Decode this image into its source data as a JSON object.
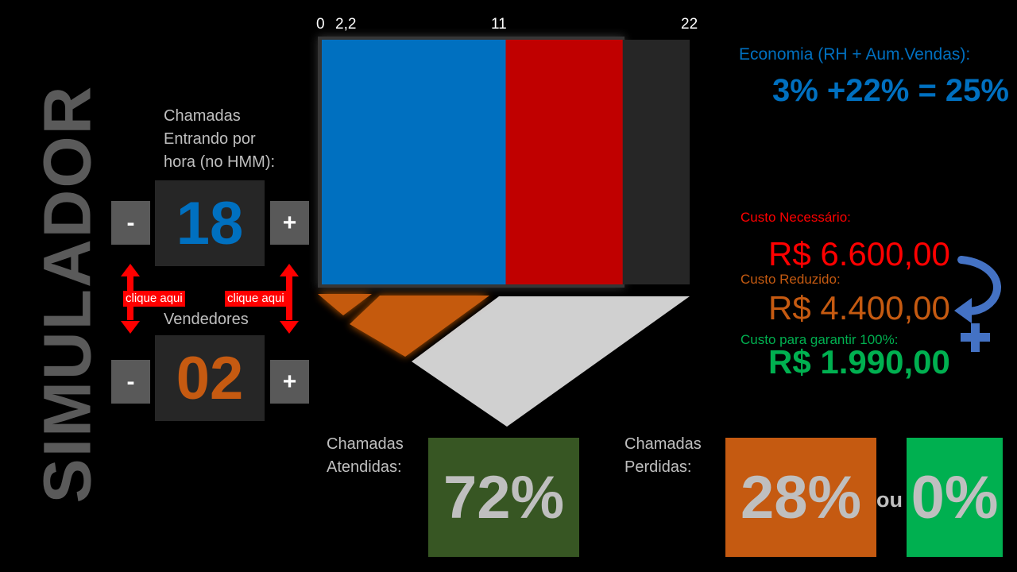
{
  "title": "SIMULADOR",
  "calls": {
    "label_line1": "Chamadas",
    "label_line2": "Entrando por",
    "label_line3": "hora (no HMM):",
    "value": "18",
    "minus": "-",
    "plus": "+"
  },
  "sellers": {
    "label": "Vendedores",
    "value": "02",
    "minus": "-",
    "plus": "+"
  },
  "hints": {
    "left": "clique aqui",
    "right": "clique aqui"
  },
  "axis_ticks": [
    "0",
    "2,2",
    "11",
    "22"
  ],
  "chart_data": {
    "type": "bar",
    "orientation": "horizontal-stacked",
    "x_ticks": [
      0,
      2.2,
      11,
      22
    ],
    "xlim": [
      0,
      22
    ],
    "segments": [
      {
        "from": 0,
        "to": 11,
        "color": "#0070c0"
      },
      {
        "from": 11,
        "to": 18,
        "color": "#c00000"
      },
      {
        "from": 18,
        "to": 22,
        "color": "#262626"
      }
    ]
  },
  "answered": {
    "label_line1": "Chamadas",
    "label_line2": "Atendidas:",
    "value": "72%"
  },
  "lost": {
    "label_line1": "Chamadas",
    "label_line2": "Perdidas:",
    "value": "28%",
    "or": "ou",
    "alt_value": "0%"
  },
  "economy": {
    "label": "Economia (RH + Aum.Vendas):",
    "value": "3% +22% = 25%"
  },
  "costs": {
    "required_label": "Custo Necessário:",
    "required_value": "R$ 6.600,00",
    "reduced_label": "Custo Reduzido:",
    "reduced_value": "R$ 4.400,00",
    "guarantee_label": "Custo para garantir 100%:",
    "guarantee_value": "R$ 1.990,00"
  },
  "colors": {
    "blue": "#0070c0",
    "red": "#c00000",
    "orange": "#c55a11",
    "dark_green": "#375623",
    "green": "#00b050",
    "gray_funnel": "#d0d0d0"
  },
  "icons": {
    "curved_arrow": "curved-arrow-icon",
    "plus_sign": "plus-icon"
  }
}
